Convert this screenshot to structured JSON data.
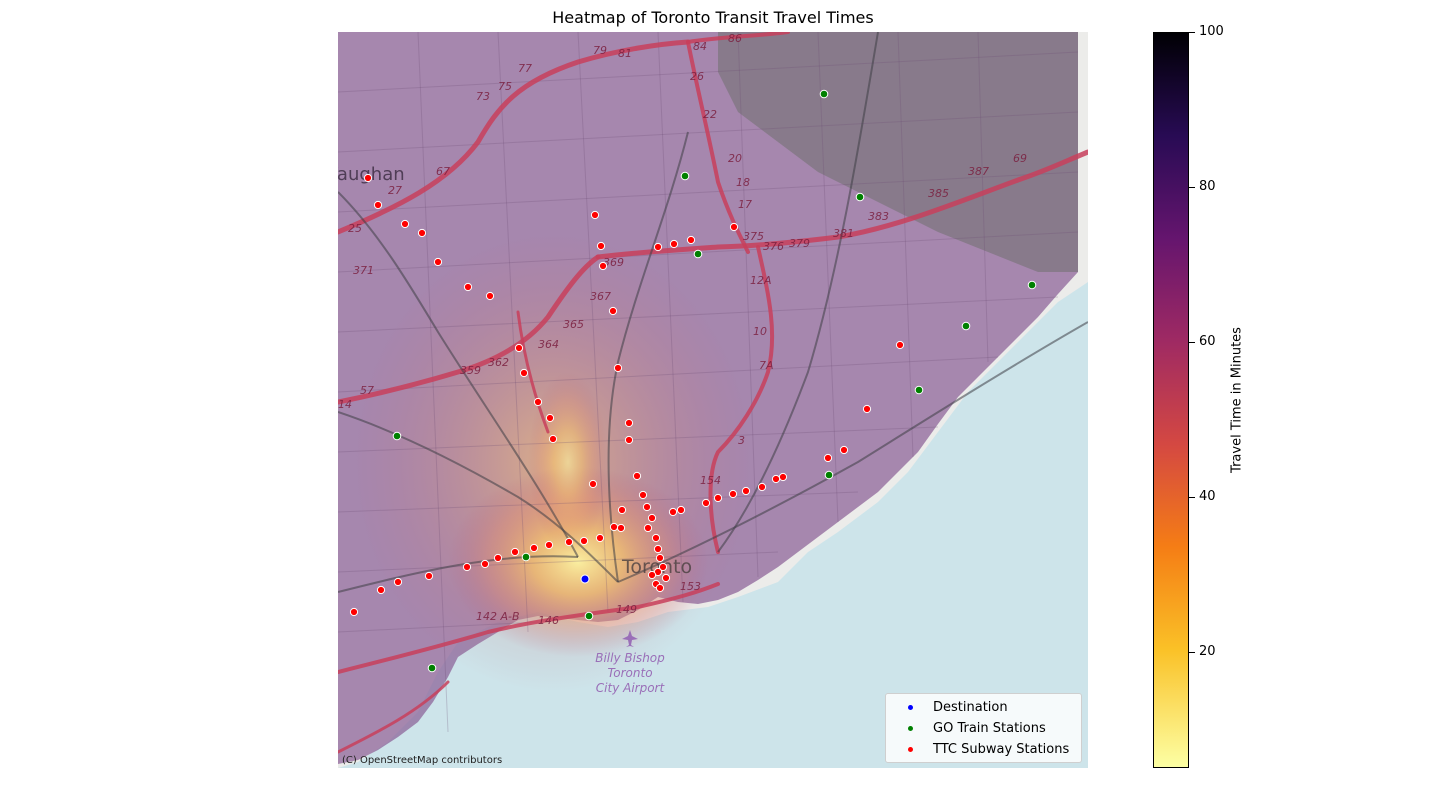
{
  "title": "Heatmap of Toronto Transit Travel Times",
  "attribution": "(C) OpenStreetMap contributors",
  "map_labels": {
    "city": "Toronto",
    "vaughan": "Vaughan",
    "airport": [
      "Billy Bishop",
      "Toronto",
      "City Airport"
    ],
    "routes": [
      "79",
      "81",
      "84",
      "86",
      "75",
      "77",
      "73",
      "26",
      "22",
      "20",
      "18",
      "17",
      "375",
      "376",
      "379",
      "381",
      "383",
      "385",
      "387",
      "69",
      "67",
      "27",
      "25",
      "371",
      "369",
      "367",
      "365",
      "364",
      "362",
      "359",
      "57",
      "14",
      "12A",
      "10",
      "7A",
      "3",
      "154",
      "153",
      "149",
      "146",
      "142 A-B"
    ]
  },
  "legend": {
    "items": [
      {
        "label": "Destination",
        "color": "#0000ff"
      },
      {
        "label": "GO Train Stations",
        "color": "#008000"
      },
      {
        "label": "TTC Subway Stations",
        "color": "#ff0000"
      }
    ]
  },
  "colorbar": {
    "label": "Travel Time in Minutes",
    "min": 5,
    "max": 100,
    "ticks": [
      20,
      40,
      60,
      80,
      100
    ],
    "colormap": "inferno_r"
  },
  "colors": {
    "water": "#cde4ea",
    "land": "#ececea",
    "highway": "#c8405c"
  }
}
